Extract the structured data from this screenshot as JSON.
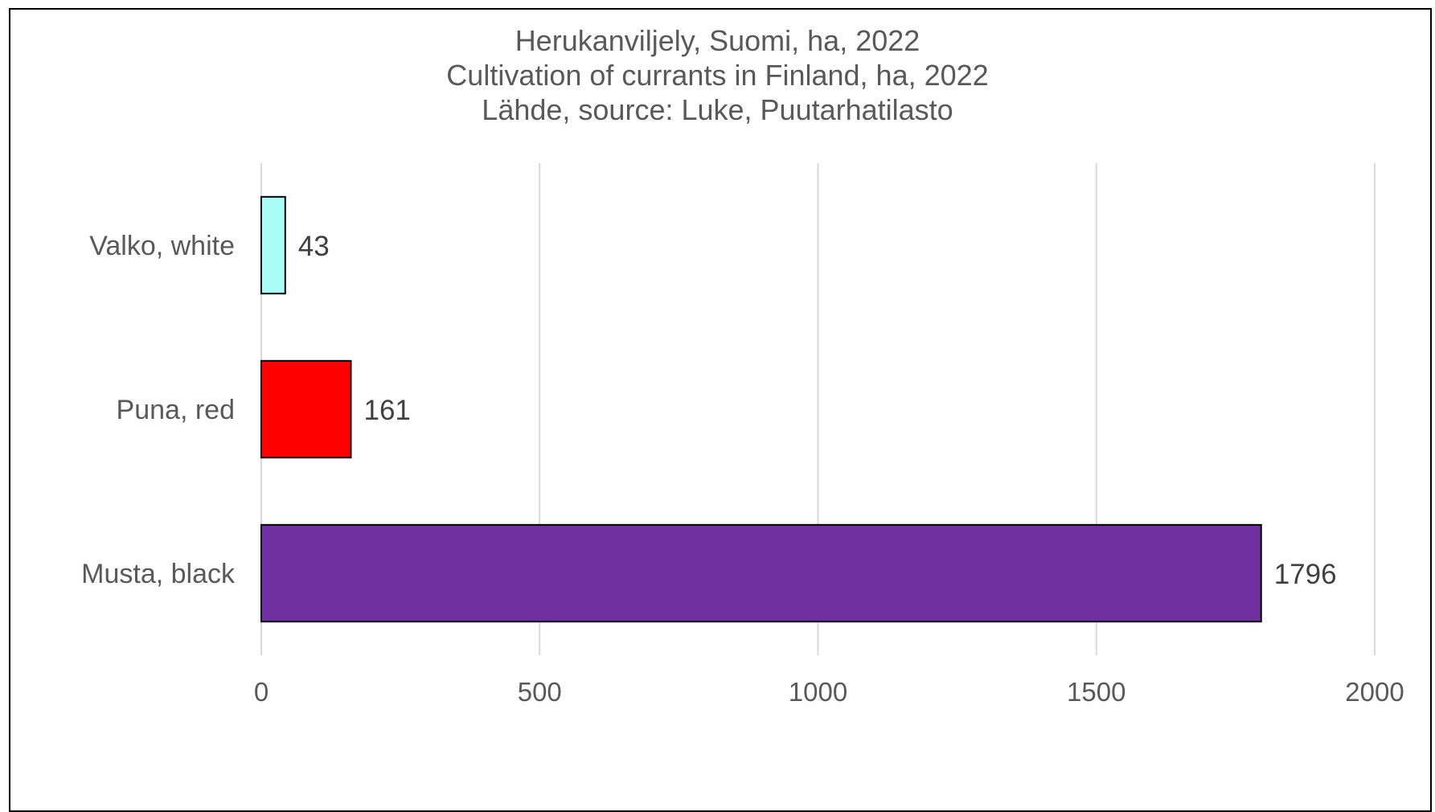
{
  "chart_data": {
    "type": "bar",
    "orientation": "horizontal",
    "title": [
      "Herukanviljely, Suomi, ha, 2022",
      "Cultivation of currants in Finland, ha, 2022",
      "Lähde, source: Luke, Puutarhatilasto"
    ],
    "categories": [
      "Valko, white",
      "Puna, red",
      "Musta, black"
    ],
    "values": [
      43,
      161,
      1796
    ],
    "colors": [
      "#a8fdf6",
      "#ff0000",
      "#7030a0"
    ],
    "data_labels": [
      "43",
      "161",
      "1796"
    ],
    "xlim": [
      0,
      2000
    ],
    "xticks": [
      0,
      500,
      1000,
      1500,
      2000
    ],
    "xtick_labels": [
      "0",
      "500",
      "1000",
      "1500",
      "2000"
    ],
    "grid": "vertical",
    "legend": "none",
    "bar_border_color": "#000000",
    "gridline_color": "#d9d9d9"
  }
}
